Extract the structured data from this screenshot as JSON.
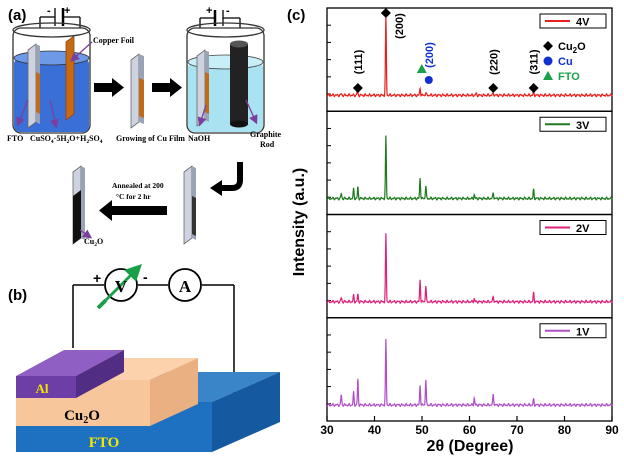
{
  "panel_a": {
    "label": "(a)",
    "copper_foil": "Copper Foil",
    "fto": "FTO",
    "electrolyte_main": "CuSO",
    "electrolyte_sub1": "4",
    "electrolyte_mid": "·5H",
    "electrolyte_sub2": "2",
    "electrolyte_mid2": "O+H",
    "electrolyte_sub3": "2",
    "electrolyte_mid3": "SO",
    "electrolyte_sub4": "4",
    "growing": "Growing of Cu Film",
    "naoh": "NaOH",
    "graphite_line1": "Graphite",
    "graphite_line2": "Rod",
    "anneal_line1": "Annealed at 200",
    "anneal_line2": "°C for 2 hr",
    "cu2o_main": "Cu",
    "cu2o_sub": "2",
    "cu2o_tail": "O",
    "plus": "+",
    "minus": "-"
  },
  "panel_b": {
    "label": "(b)",
    "al": "Al",
    "cu2o_main": "Cu",
    "cu2o_sub": "2",
    "cu2o_tail": "O",
    "fto": "FTO",
    "voltmeter": "V",
    "ammeter": "A",
    "plus": "+",
    "minus": "-"
  },
  "chart_data": {
    "type": "line",
    "label": "(c)",
    "xlabel": "2θ (Degree)",
    "ylabel": "Intensity (a.u.)",
    "xlim": [
      30,
      90
    ],
    "xticks": [
      30,
      40,
      50,
      60,
      70,
      80,
      90
    ],
    "series": [
      {
        "name": "4V",
        "color": "#e8201c",
        "peaks": [
          [
            33.0,
            0.02
          ],
          [
            36.4,
            0.06
          ],
          [
            42.4,
            1.0
          ],
          [
            49.6,
            0.09
          ],
          [
            50.8,
            0.03
          ],
          [
            61.4,
            0.02
          ],
          [
            65.0,
            0.03
          ],
          [
            73.5,
            0.05
          ]
        ]
      },
      {
        "name": "3V",
        "color": "#1f7a1f",
        "peaks": [
          [
            33.0,
            0.06
          ],
          [
            35.6,
            0.12
          ],
          [
            36.5,
            0.14
          ],
          [
            42.4,
            0.78
          ],
          [
            49.6,
            0.26
          ],
          [
            50.8,
            0.16
          ],
          [
            61.0,
            0.05
          ],
          [
            65.0,
            0.07
          ],
          [
            73.5,
            0.11
          ]
        ]
      },
      {
        "name": "2V",
        "color": "#e0207a",
        "peaks": [
          [
            33.0,
            0.05
          ],
          [
            35.6,
            0.08
          ],
          [
            36.5,
            0.09
          ],
          [
            42.4,
            0.85
          ],
          [
            49.6,
            0.28
          ],
          [
            50.8,
            0.2
          ],
          [
            61.0,
            0.04
          ],
          [
            65.0,
            0.07
          ],
          [
            73.5,
            0.11
          ]
        ]
      },
      {
        "name": "1V",
        "color": "#b04fc8",
        "peaks": [
          [
            33.0,
            0.13
          ],
          [
            35.6,
            0.16
          ],
          [
            36.5,
            0.32
          ],
          [
            42.4,
            0.82
          ],
          [
            49.6,
            0.25
          ],
          [
            50.8,
            0.32
          ],
          [
            61.0,
            0.09
          ],
          [
            65.0,
            0.14
          ],
          [
            73.5,
            0.07
          ]
        ]
      }
    ],
    "annotations": [
      {
        "text": "(111)",
        "x": 36.5
      },
      {
        "text": "(200)",
        "x": 42.4
      },
      {
        "text": "(200)",
        "x": 50.8,
        "color": "#1030d0"
      },
      {
        "text": "(220)",
        "x": 65.0
      },
      {
        "text": "(311)",
        "x": 73.5
      }
    ],
    "legend": [
      {
        "symbol": "diamond",
        "color": "#000000",
        "main": "Cu",
        "sub": "2",
        "tail": "O"
      },
      {
        "symbol": "circle",
        "color": "#1030d0",
        "main": "Cu",
        "sub": "",
        "tail": ""
      },
      {
        "symbol": "triangle",
        "color": "#1aa04a",
        "main": "FTO",
        "sub": "",
        "tail": ""
      }
    ],
    "legend_position": "top-right"
  }
}
